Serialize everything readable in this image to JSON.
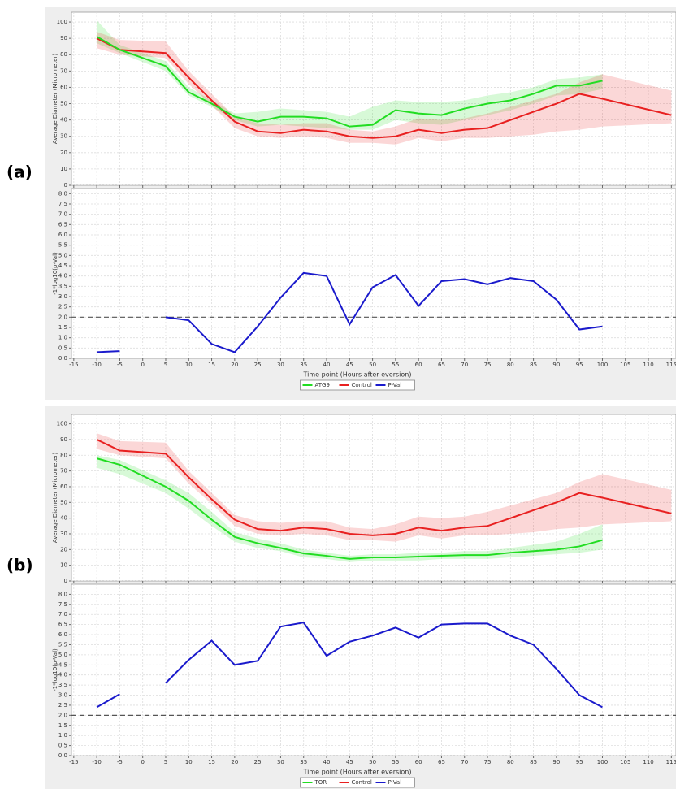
{
  "chart_data": [
    {
      "type": "line",
      "panel_label": "(a)",
      "ylabel": "Average Diameter (Micrometer)",
      "x": [
        -10,
        -5,
        5,
        10,
        15,
        20,
        25,
        30,
        35,
        40,
        45,
        50,
        55,
        60,
        65,
        70,
        75,
        80,
        85,
        90,
        95,
        100,
        115
      ],
      "series": [
        {
          "name": "ATG9",
          "color": "#22dd22",
          "values": [
            91,
            83,
            73,
            57,
            50,
            42,
            39,
            42,
            42,
            41,
            36,
            37,
            46,
            44,
            43,
            47,
            50,
            52,
            56,
            61,
            61,
            64,
            null
          ],
          "lower": [
            87,
            81,
            70,
            55,
            48,
            40,
            36,
            37,
            36,
            35,
            34,
            34,
            40,
            38,
            37,
            40,
            43,
            46,
            50,
            55,
            56,
            59,
            null
          ],
          "upper": [
            101,
            86,
            76,
            60,
            52,
            44,
            45,
            47,
            46,
            45,
            42,
            48,
            52,
            51,
            51,
            52,
            55,
            57,
            60,
            65,
            66,
            68,
            null
          ]
        },
        {
          "name": "Control",
          "color": "#e82020",
          "values": [
            90,
            83,
            81,
            66,
            52,
            39,
            33,
            32,
            34,
            33,
            30,
            29,
            30,
            34,
            32,
            34,
            35,
            40,
            45,
            50,
            56,
            53,
            43
          ],
          "lower": [
            84,
            80,
            78,
            62,
            49,
            35,
            30,
            29,
            30,
            29,
            26,
            26,
            25,
            29,
            27,
            29,
            29,
            30,
            31,
            33,
            34,
            36,
            38
          ],
          "upper": [
            94,
            89,
            88,
            70,
            56,
            42,
            38,
            37,
            38,
            38,
            34,
            33,
            36,
            41,
            40,
            41,
            44,
            48,
            52,
            56,
            63,
            68,
            58
          ]
        }
      ],
      "xlim": [
        -15.5,
        116
      ],
      "xticks": [
        -15,
        -10,
        -5,
        0,
        5,
        10,
        15,
        20,
        25,
        30,
        35,
        40,
        45,
        50,
        55,
        60,
        65,
        70,
        75,
        80,
        85,
        90,
        95,
        100,
        105,
        110,
        115
      ],
      "ylim": [
        0,
        106
      ],
      "yticks": [
        0,
        10,
        20,
        30,
        40,
        50,
        60,
        70,
        80,
        90,
        100
      ],
      "grid": true
    },
    {
      "type": "line",
      "ylabel": "-1*log10(p-Val)",
      "xlabel": "Time point (Hours after eversion)",
      "x": [
        -10,
        -5,
        0,
        5,
        10,
        15,
        20,
        25,
        30,
        35,
        40,
        45,
        50,
        55,
        60,
        65,
        70,
        75,
        80,
        85,
        90,
        95,
        100
      ],
      "series": [
        {
          "name": "P-Val",
          "color": "#1a1acc",
          "values": [
            0.3,
            0.35,
            null,
            2.0,
            1.85,
            0.7,
            0.3,
            1.55,
            2.95,
            4.15,
            4.0,
            1.65,
            3.45,
            4.05,
            2.55,
            3.75,
            3.85,
            3.6,
            3.9,
            3.75,
            2.85,
            1.4,
            1.55
          ]
        }
      ],
      "threshold": 2,
      "xlim": [
        -15.5,
        116
      ],
      "xticks": [
        -15,
        -10,
        -5,
        0,
        5,
        10,
        15,
        20,
        25,
        30,
        35,
        40,
        45,
        50,
        55,
        60,
        65,
        70,
        75,
        80,
        85,
        90,
        95,
        100,
        105,
        110,
        115
      ],
      "ylim": [
        0,
        8.25
      ],
      "yticks": [
        {
          "value": 0,
          "label": "0.0"
        },
        0.5,
        {
          "value": 1,
          "label": "1.0"
        },
        1.5,
        {
          "value": 2,
          "label": "2.0"
        },
        2.5,
        {
          "value": 3,
          "label": "3.0"
        },
        3.5,
        {
          "value": 4,
          "label": "4.0"
        },
        4.5,
        {
          "value": 5,
          "label": "5.0"
        },
        5.5,
        {
          "value": 6,
          "label": "6.0"
        },
        6.5,
        {
          "value": 7,
          "label": "7.0"
        },
        7.5,
        {
          "value": 8,
          "label": "8.0"
        }
      ],
      "grid": true
    },
    {
      "type": "line",
      "panel_label": "(b)",
      "ylabel": "Average Diameter (Micrometer)",
      "x": [
        -10,
        -5,
        5,
        10,
        15,
        20,
        25,
        30,
        35,
        40,
        45,
        50,
        55,
        60,
        65,
        70,
        75,
        80,
        85,
        90,
        95,
        100,
        115
      ],
      "series": [
        {
          "name": "TOR",
          "color": "#22dd22",
          "values": [
            78,
            74,
            60,
            51,
            39,
            28,
            24,
            21,
            17.5,
            16,
            14,
            15,
            15,
            15.5,
            16,
            16.5,
            16.5,
            18,
            19,
            20,
            22,
            26,
            null
          ],
          "lower": [
            72,
            68,
            56,
            46,
            35,
            25,
            21,
            19,
            15,
            14,
            12,
            13,
            13,
            13,
            14,
            14,
            14,
            15,
            16,
            17,
            18,
            20,
            null
          ],
          "upper": [
            80,
            77,
            64,
            56,
            44,
            31,
            27,
            24,
            20,
            18,
            16,
            17,
            17,
            18,
            18,
            19,
            19,
            21,
            23,
            25,
            30,
            36,
            null
          ]
        },
        {
          "name": "Control",
          "color": "#e82020",
          "values": [
            90,
            83,
            81,
            66,
            52,
            39,
            33,
            32,
            34,
            33,
            30,
            29,
            30,
            34,
            32,
            34,
            35,
            40,
            45,
            50,
            56,
            53,
            43
          ],
          "lower": [
            84,
            80,
            78,
            62,
            49,
            35,
            30,
            29,
            30,
            29,
            26,
            26,
            25,
            29,
            27,
            29,
            29,
            30,
            31,
            33,
            34,
            36,
            38
          ],
          "upper": [
            94,
            89,
            88,
            70,
            56,
            42,
            38,
            37,
            38,
            38,
            34,
            33,
            36,
            41,
            40,
            41,
            44,
            48,
            52,
            56,
            63,
            68,
            58
          ]
        }
      ],
      "xlim": [
        -15.5,
        116
      ],
      "xticks": [
        -15,
        -10,
        -5,
        0,
        5,
        10,
        15,
        20,
        25,
        30,
        35,
        40,
        45,
        50,
        55,
        60,
        65,
        70,
        75,
        80,
        85,
        90,
        95,
        100,
        105,
        110,
        115
      ],
      "ylim": [
        0,
        106
      ],
      "yticks": [
        0,
        10,
        20,
        30,
        40,
        50,
        60,
        70,
        80,
        90,
        100
      ],
      "grid": true
    },
    {
      "type": "line",
      "ylabel": "-1*log10(p-Val)",
      "xlabel": "Time point (Hours after eversion)",
      "x": [
        -10,
        -5,
        0,
        5,
        10,
        15,
        20,
        25,
        30,
        35,
        40,
        45,
        50,
        55,
        60,
        65,
        70,
        75,
        80,
        85,
        90,
        95,
        100
      ],
      "series": [
        {
          "name": "P-Val",
          "color": "#1a1acc",
          "values": [
            2.4,
            3.05,
            null,
            3.6,
            4.75,
            5.7,
            4.5,
            4.7,
            6.4,
            6.6,
            4.95,
            5.65,
            5.95,
            6.35,
            5.85,
            6.5,
            6.55,
            6.55,
            5.95,
            5.5,
            4.3,
            3.0,
            2.4
          ]
        }
      ],
      "threshold": 2,
      "xlim": [
        -15.5,
        116
      ],
      "xticks": [
        -15,
        -10,
        -5,
        0,
        5,
        10,
        15,
        20,
        25,
        30,
        35,
        40,
        45,
        50,
        55,
        60,
        65,
        70,
        75,
        80,
        85,
        90,
        95,
        100,
        105,
        110,
        115
      ],
      "ylim": [
        0,
        8.5
      ],
      "yticks": [
        {
          "value": 0,
          "label": "0.0"
        },
        0.5,
        {
          "value": 1,
          "label": "1.0"
        },
        1.5,
        {
          "value": 2,
          "label": "2.0"
        },
        2.5,
        {
          "value": 3,
          "label": "3.0"
        },
        3.5,
        {
          "value": 4,
          "label": "4.0"
        },
        4.5,
        {
          "value": 5,
          "label": "5.0"
        },
        5.5,
        {
          "value": 6,
          "label": "6.0"
        },
        6.5,
        {
          "value": 7,
          "label": "7.0"
        },
        7.5,
        {
          "value": 8,
          "label": "8.0"
        }
      ],
      "grid": true
    }
  ]
}
